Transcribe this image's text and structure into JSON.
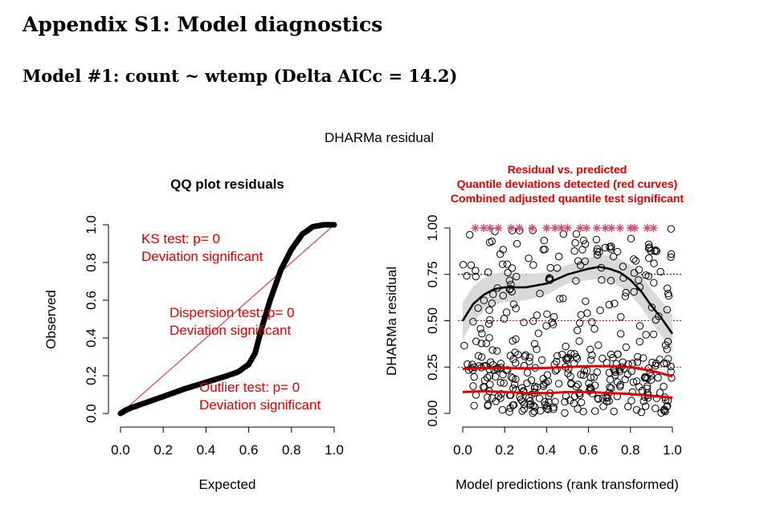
{
  "document": {
    "appendix_title": "Appendix S1: Model diagnostics",
    "model_title": "Model #1: count ~ wtemp (Delta AICc = 14.2)"
  },
  "figure": {
    "title": "DHARMa residual"
  },
  "colors": {
    "accent_red": "#e00000",
    "ref_line": "#d4506a",
    "smooth_band": "#d9d9d9",
    "outlier_star": "#d4506a"
  },
  "chart_data": [
    {
      "type": "scatter",
      "title": "QQ plot residuals",
      "xlabel": "Expected",
      "ylabel": "Observed",
      "xlim": [
        0,
        1
      ],
      "ylim": [
        0,
        1
      ],
      "xticks": [
        "0.0",
        "0.2",
        "0.4",
        "0.6",
        "0.8",
        "1.0"
      ],
      "yticks": [
        "0.0",
        "0.2",
        "0.4",
        "0.6",
        "0.8",
        "1.0"
      ],
      "reference_line": {
        "x": [
          0,
          1
        ],
        "y": [
          0,
          1
        ]
      },
      "qq_curve": {
        "x": [
          0.0,
          0.02,
          0.05,
          0.1,
          0.2,
          0.3,
          0.4,
          0.5,
          0.55,
          0.6,
          0.63,
          0.66,
          0.7,
          0.75,
          0.8,
          0.85,
          0.9,
          0.95,
          1.0
        ],
        "y": [
          0.0,
          0.015,
          0.03,
          0.05,
          0.09,
          0.13,
          0.165,
          0.2,
          0.22,
          0.26,
          0.32,
          0.45,
          0.6,
          0.76,
          0.87,
          0.95,
          0.99,
          1.0,
          1.0
        ]
      },
      "annotations": [
        {
          "lines": [
            "KS test: p= 0",
            "Deviation  significant"
          ]
        },
        {
          "lines": [
            "Dispersion test: p= 0",
            "Deviation  significant"
          ]
        },
        {
          "lines": [
            "Outlier test: p= 0",
            "Deviation  significant"
          ]
        }
      ]
    },
    {
      "type": "scatter",
      "title_lines": [
        "Residual vs. predicted",
        "Quantile deviations detected (red curves)",
        "Combined adjusted quantile test significant"
      ],
      "xlabel": "Model predictions (rank transformed)",
      "ylabel": "DHARMa residual",
      "xlim": [
        0,
        1
      ],
      "ylim": [
        0,
        1
      ],
      "xticks": [
        "0.0",
        "0.2",
        "0.4",
        "0.6",
        "0.8",
        "1.0"
      ],
      "yticks": [
        "0.00",
        "0.25",
        "0.50",
        "0.75",
        "1.00"
      ],
      "reference_lines_y": [
        0.25,
        0.5,
        0.75
      ],
      "smooth_median": {
        "x": [
          0.0,
          0.05,
          0.1,
          0.15,
          0.2,
          0.3,
          0.4,
          0.5,
          0.6,
          0.65,
          0.7,
          0.75,
          0.8,
          0.85,
          0.9,
          0.95,
          1.0
        ],
        "y": [
          0.5,
          0.59,
          0.64,
          0.67,
          0.68,
          0.68,
          0.7,
          0.75,
          0.78,
          0.79,
          0.78,
          0.76,
          0.72,
          0.66,
          0.58,
          0.51,
          0.43
        ]
      },
      "smooth_q25": {
        "x": [
          0.0,
          0.1,
          0.2,
          0.3,
          0.4,
          0.5,
          0.6,
          0.7,
          0.8,
          0.9,
          1.0
        ],
        "y": [
          0.24,
          0.245,
          0.245,
          0.242,
          0.245,
          0.25,
          0.255,
          0.255,
          0.25,
          0.23,
          0.2
        ]
      },
      "smooth_q10": {
        "x": [
          0.0,
          0.1,
          0.2,
          0.3,
          0.4,
          0.5,
          0.6,
          0.7,
          0.8,
          0.9,
          1.0
        ],
        "y": [
          0.115,
          0.12,
          0.115,
          0.11,
          0.11,
          0.115,
          0.115,
          0.11,
          0.105,
          0.095,
          0.085
        ]
      },
      "outlier_x": [
        0.06,
        0.1,
        0.13,
        0.17,
        0.23,
        0.27,
        0.33,
        0.4,
        0.44,
        0.47,
        0.5,
        0.56,
        0.59,
        0.64,
        0.68,
        0.71,
        0.75,
        0.8,
        0.82,
        0.88,
        0.91
      ]
    }
  ]
}
